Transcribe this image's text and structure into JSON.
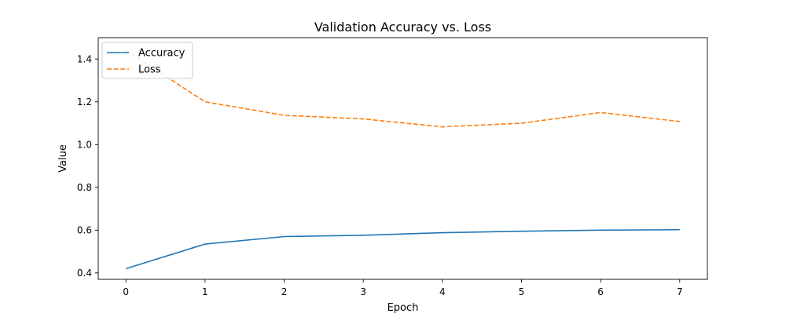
{
  "chart_data": {
    "type": "line",
    "title": "Validation Accuracy vs. Loss",
    "xlabel": "Epoch",
    "ylabel": "Value",
    "x": [
      0,
      1,
      2,
      3,
      4,
      5,
      6,
      7
    ],
    "xlim": [
      -0.35,
      7.35
    ],
    "ylim": [
      0.37,
      1.5
    ],
    "xticks": [
      0,
      1,
      2,
      3,
      4,
      5,
      6,
      7
    ],
    "yticks": [
      0.4,
      0.6,
      0.8,
      1.0,
      1.2,
      1.4
    ],
    "ytick_labels": [
      "0.4",
      "0.6",
      "0.8",
      "1.0",
      "1.2",
      "1.4"
    ],
    "grid": false,
    "legend_position": "top-left",
    "series": [
      {
        "name": "Accuracy",
        "color": "#1f77b4",
        "style": "solid",
        "values": [
          0.42,
          0.535,
          0.57,
          0.576,
          0.588,
          0.595,
          0.6,
          0.602
        ]
      },
      {
        "name": "Loss",
        "color": "#ff7f0e",
        "style": "dashed",
        "values": [
          1.44,
          1.2,
          1.137,
          1.12,
          1.083,
          1.1,
          1.15,
          1.108
        ]
      }
    ]
  }
}
